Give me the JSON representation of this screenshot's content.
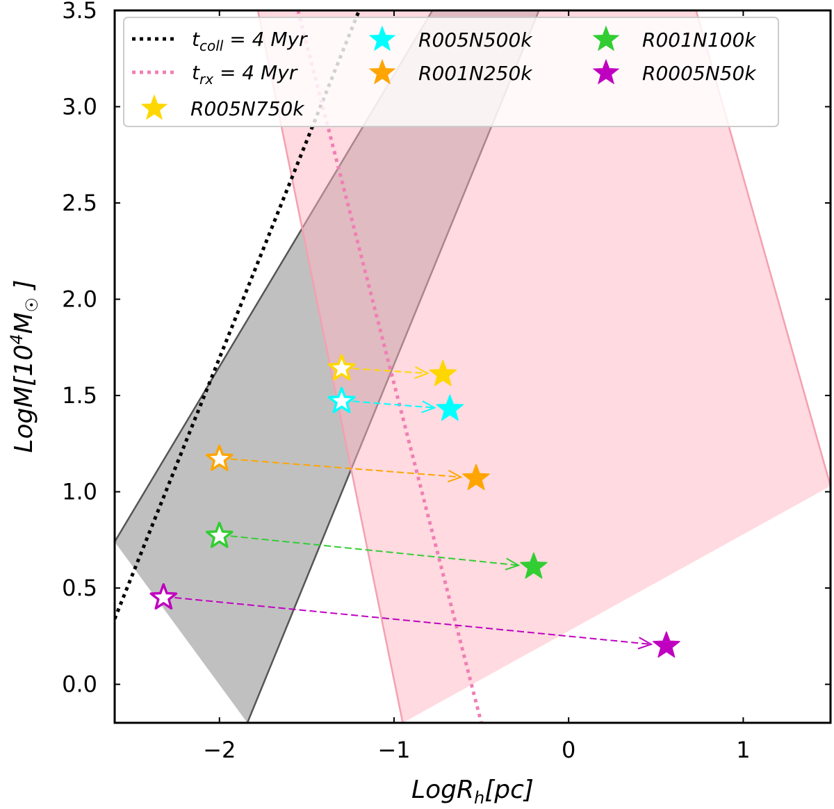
{
  "chart_data": {
    "type": "scatter",
    "xlabel": "LogR_h[pc]",
    "ylabel": "LogM[10^4 M_☉]",
    "xlim": [
      -2.6,
      1.5
    ],
    "ylim": [
      -0.2,
      3.5
    ],
    "xticks": [
      -2,
      -1,
      0,
      1
    ],
    "xtick_labels": [
      "−2",
      "−1",
      "0",
      "1"
    ],
    "yticks": [
      0.0,
      0.5,
      1.0,
      1.5,
      2.0,
      2.5,
      3.0,
      3.5
    ],
    "ytick_labels": [
      "0.0",
      "0.5",
      "1.0",
      "1.5",
      "2.0",
      "2.5",
      "3.0",
      "3.5"
    ],
    "bands": [
      {
        "name": "collision-band",
        "color": "#999999",
        "opacity": 0.62,
        "stroke": "#555555",
        "edges": [
          [
            [
              -2.6,
              0.74
            ],
            [
              -0.78,
              3.5
            ]
          ],
          [
            [
              -1.84,
              -0.2
            ],
            [
              -0.17,
              3.5
            ]
          ]
        ]
      },
      {
        "name": "relaxation-band",
        "color": "#ffb6c1",
        "opacity": 0.5,
        "stroke": "#f4a0b0",
        "edges": [
          [
            [
              -1.78,
              3.5
            ],
            [
              -0.95,
              -0.2
            ]
          ],
          [
            [
              0.73,
              3.5
            ],
            [
              1.5,
              1.03
            ]
          ]
        ]
      }
    ],
    "lines": [
      {
        "name": "t_coll = 4 Myr",
        "color": "#000000",
        "points": [
          [
            -2.6,
            0.34
          ],
          [
            -1.2,
            3.5
          ]
        ]
      },
      {
        "name": "t_rx = 4 Myr",
        "color": "#ef7fb4",
        "points": [
          [
            -1.55,
            3.5
          ],
          [
            -0.5,
            -0.2
          ]
        ]
      }
    ],
    "series": [
      {
        "name": "R005N750k",
        "color": "#ffd700",
        "initial": [
          -1.3,
          1.64
        ],
        "final": [
          -0.72,
          1.61
        ]
      },
      {
        "name": "R005N500k",
        "color": "#00ffff",
        "initial": [
          -1.3,
          1.47
        ],
        "final": [
          -0.68,
          1.43
        ]
      },
      {
        "name": "R001N250k",
        "color": "#ffa500",
        "initial": [
          -2.0,
          1.17
        ],
        "final": [
          -0.53,
          1.07
        ]
      },
      {
        "name": "R001N100k",
        "color": "#32cd32",
        "initial": [
          -2.0,
          0.77
        ],
        "final": [
          -0.2,
          0.61
        ]
      },
      {
        "name": "R0005N50k",
        "color": "#c000c0",
        "initial": [
          -2.32,
          0.45
        ],
        "final": [
          0.56,
          0.2
        ]
      }
    ],
    "legend": {
      "placement": "top",
      "line_entries": [
        {
          "main": "t",
          "sub": "coll",
          "rest": " = 4 Myr",
          "color": "#000000"
        },
        {
          "main": "t",
          "sub": "rx",
          "rest": " = 4 Myr",
          "color": "#ef7fb4"
        }
      ],
      "star_entries": [
        {
          "label": "R005N750k",
          "color": "#ffd700"
        },
        {
          "label": "R005N500k",
          "color": "#00ffff"
        },
        {
          "label": "R001N250k",
          "color": "#ffa500"
        },
        {
          "label": "R001N100k",
          "color": "#32cd32"
        },
        {
          "label": "R0005N50k",
          "color": "#c000c0"
        }
      ]
    }
  }
}
